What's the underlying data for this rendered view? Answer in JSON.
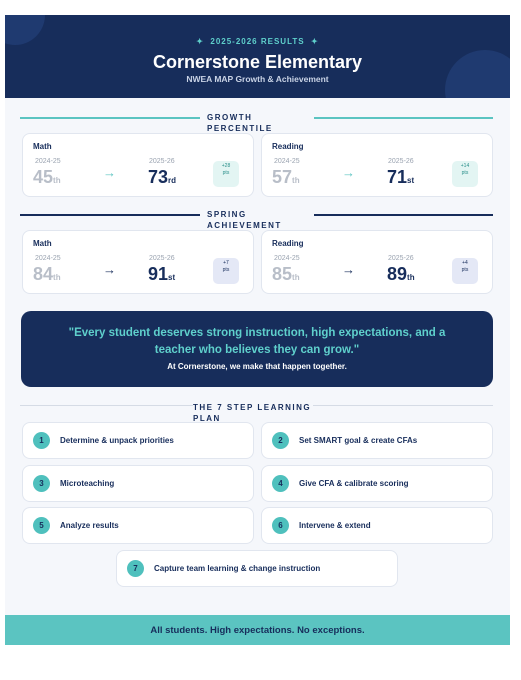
{
  "header": {
    "eyebrow": "2025-2026 RESULTS",
    "title": "Cornerstone Elementary",
    "subtitle": "NWEA MAP Growth & Achievement"
  },
  "sections": [
    {
      "title": "GROWTH PERCENTILE",
      "cards": [
        {
          "subject": "Math",
          "before_label": "2024-25",
          "before_value": 45,
          "before_suffix": "th",
          "after_label": "2025-26",
          "after_value": 73,
          "after_suffix": "rd",
          "change": "+28",
          "change_unit": "pts"
        },
        {
          "subject": "Reading",
          "before_label": "2024-25",
          "before_value": 57,
          "before_suffix": "th",
          "after_label": "2025-26",
          "after_value": 71,
          "after_suffix": "st",
          "change": "+14",
          "change_unit": "pts"
        }
      ]
    },
    {
      "title": "SPRING ACHIEVEMENT",
      "cards": [
        {
          "subject": "Math",
          "before_label": "2024-25",
          "before_value": 84,
          "before_suffix": "th",
          "after_label": "2025-26",
          "after_value": 91,
          "after_suffix": "st",
          "change": "+7",
          "change_unit": "pts"
        },
        {
          "subject": "Reading",
          "before_label": "2024-25",
          "before_value": 85,
          "before_suffix": "th",
          "after_label": "2025-26",
          "after_value": 89,
          "after_suffix": "th",
          "change": "+4",
          "change_unit": "pts"
        }
      ]
    }
  ],
  "quote": {
    "text": "\"Every student deserves strong instruction, high expectations, and a teacher who believes they can grow.\"",
    "tagline": "At Cornerstone, we make that happen together."
  },
  "plan": {
    "title": "THE 7 STEP LEARNING PLAN",
    "steps": [
      {
        "number": 1,
        "label": "Determine & unpack priorities"
      },
      {
        "number": 2,
        "label": "Set SMART goal & create CFAs"
      },
      {
        "number": 3,
        "label": "Microteaching"
      },
      {
        "number": 4,
        "label": "Give CFA & calibrate scoring"
      },
      {
        "number": 5,
        "label": "Analyze results"
      },
      {
        "number": 6,
        "label": "Intervene & extend"
      },
      {
        "number": 7,
        "label": "Capture team learning & change instruction"
      }
    ]
  },
  "footer": "All students. High expectations. No exceptions."
}
